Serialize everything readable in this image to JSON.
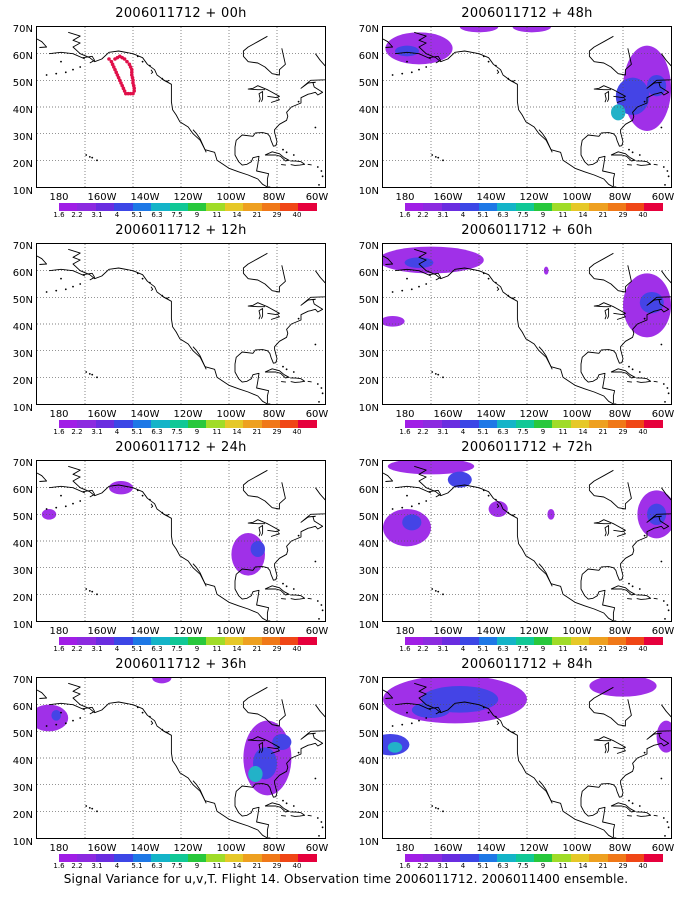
{
  "colors": {
    "scale": [
      "#a01ee6",
      "#8c2ae0",
      "#6a2de0",
      "#3c46e6",
      "#1e78e6",
      "#14b4c8",
      "#10c896",
      "#28c83c",
      "#a0dc28",
      "#e6c828",
      "#eea020",
      "#f07818",
      "#f04616",
      "#e6003c"
    ],
    "fill_low": "#a030e8",
    "fill_mid": "#4444e6",
    "fill_high": "#22b2c8",
    "flight_track": "#e0104a",
    "coast": "#000000",
    "grid": "#555555"
  },
  "colorbar_labels": [
    "1.6",
    "2.2",
    "3.1",
    "4",
    "5.1",
    "6.3",
    "7.5",
    "9",
    "11",
    "14",
    "21",
    "29",
    "40"
  ],
  "y_ticks": [
    "70N",
    "60N",
    "50N",
    "40N",
    "30N",
    "20N",
    "10N"
  ],
  "x_ticks": [
    "180",
    "160W",
    "140W",
    "120W",
    "100W",
    "80W",
    "60W"
  ],
  "panels": [
    {
      "title": "2006011712 + 00h"
    },
    {
      "title": "2006011712 + 12h"
    },
    {
      "title": "2006011712 + 24h"
    },
    {
      "title": "2006011712 + 36h"
    },
    {
      "title": "2006011712 + 48h"
    },
    {
      "title": "2006011712 + 60h"
    },
    {
      "title": "2006011712 + 72h"
    },
    {
      "title": "2006011712 + 84h"
    }
  ],
  "caption": "Signal Variance for u,v,T. Flight 14. Observation time 2006011712. 2006011400 ensemble."
}
